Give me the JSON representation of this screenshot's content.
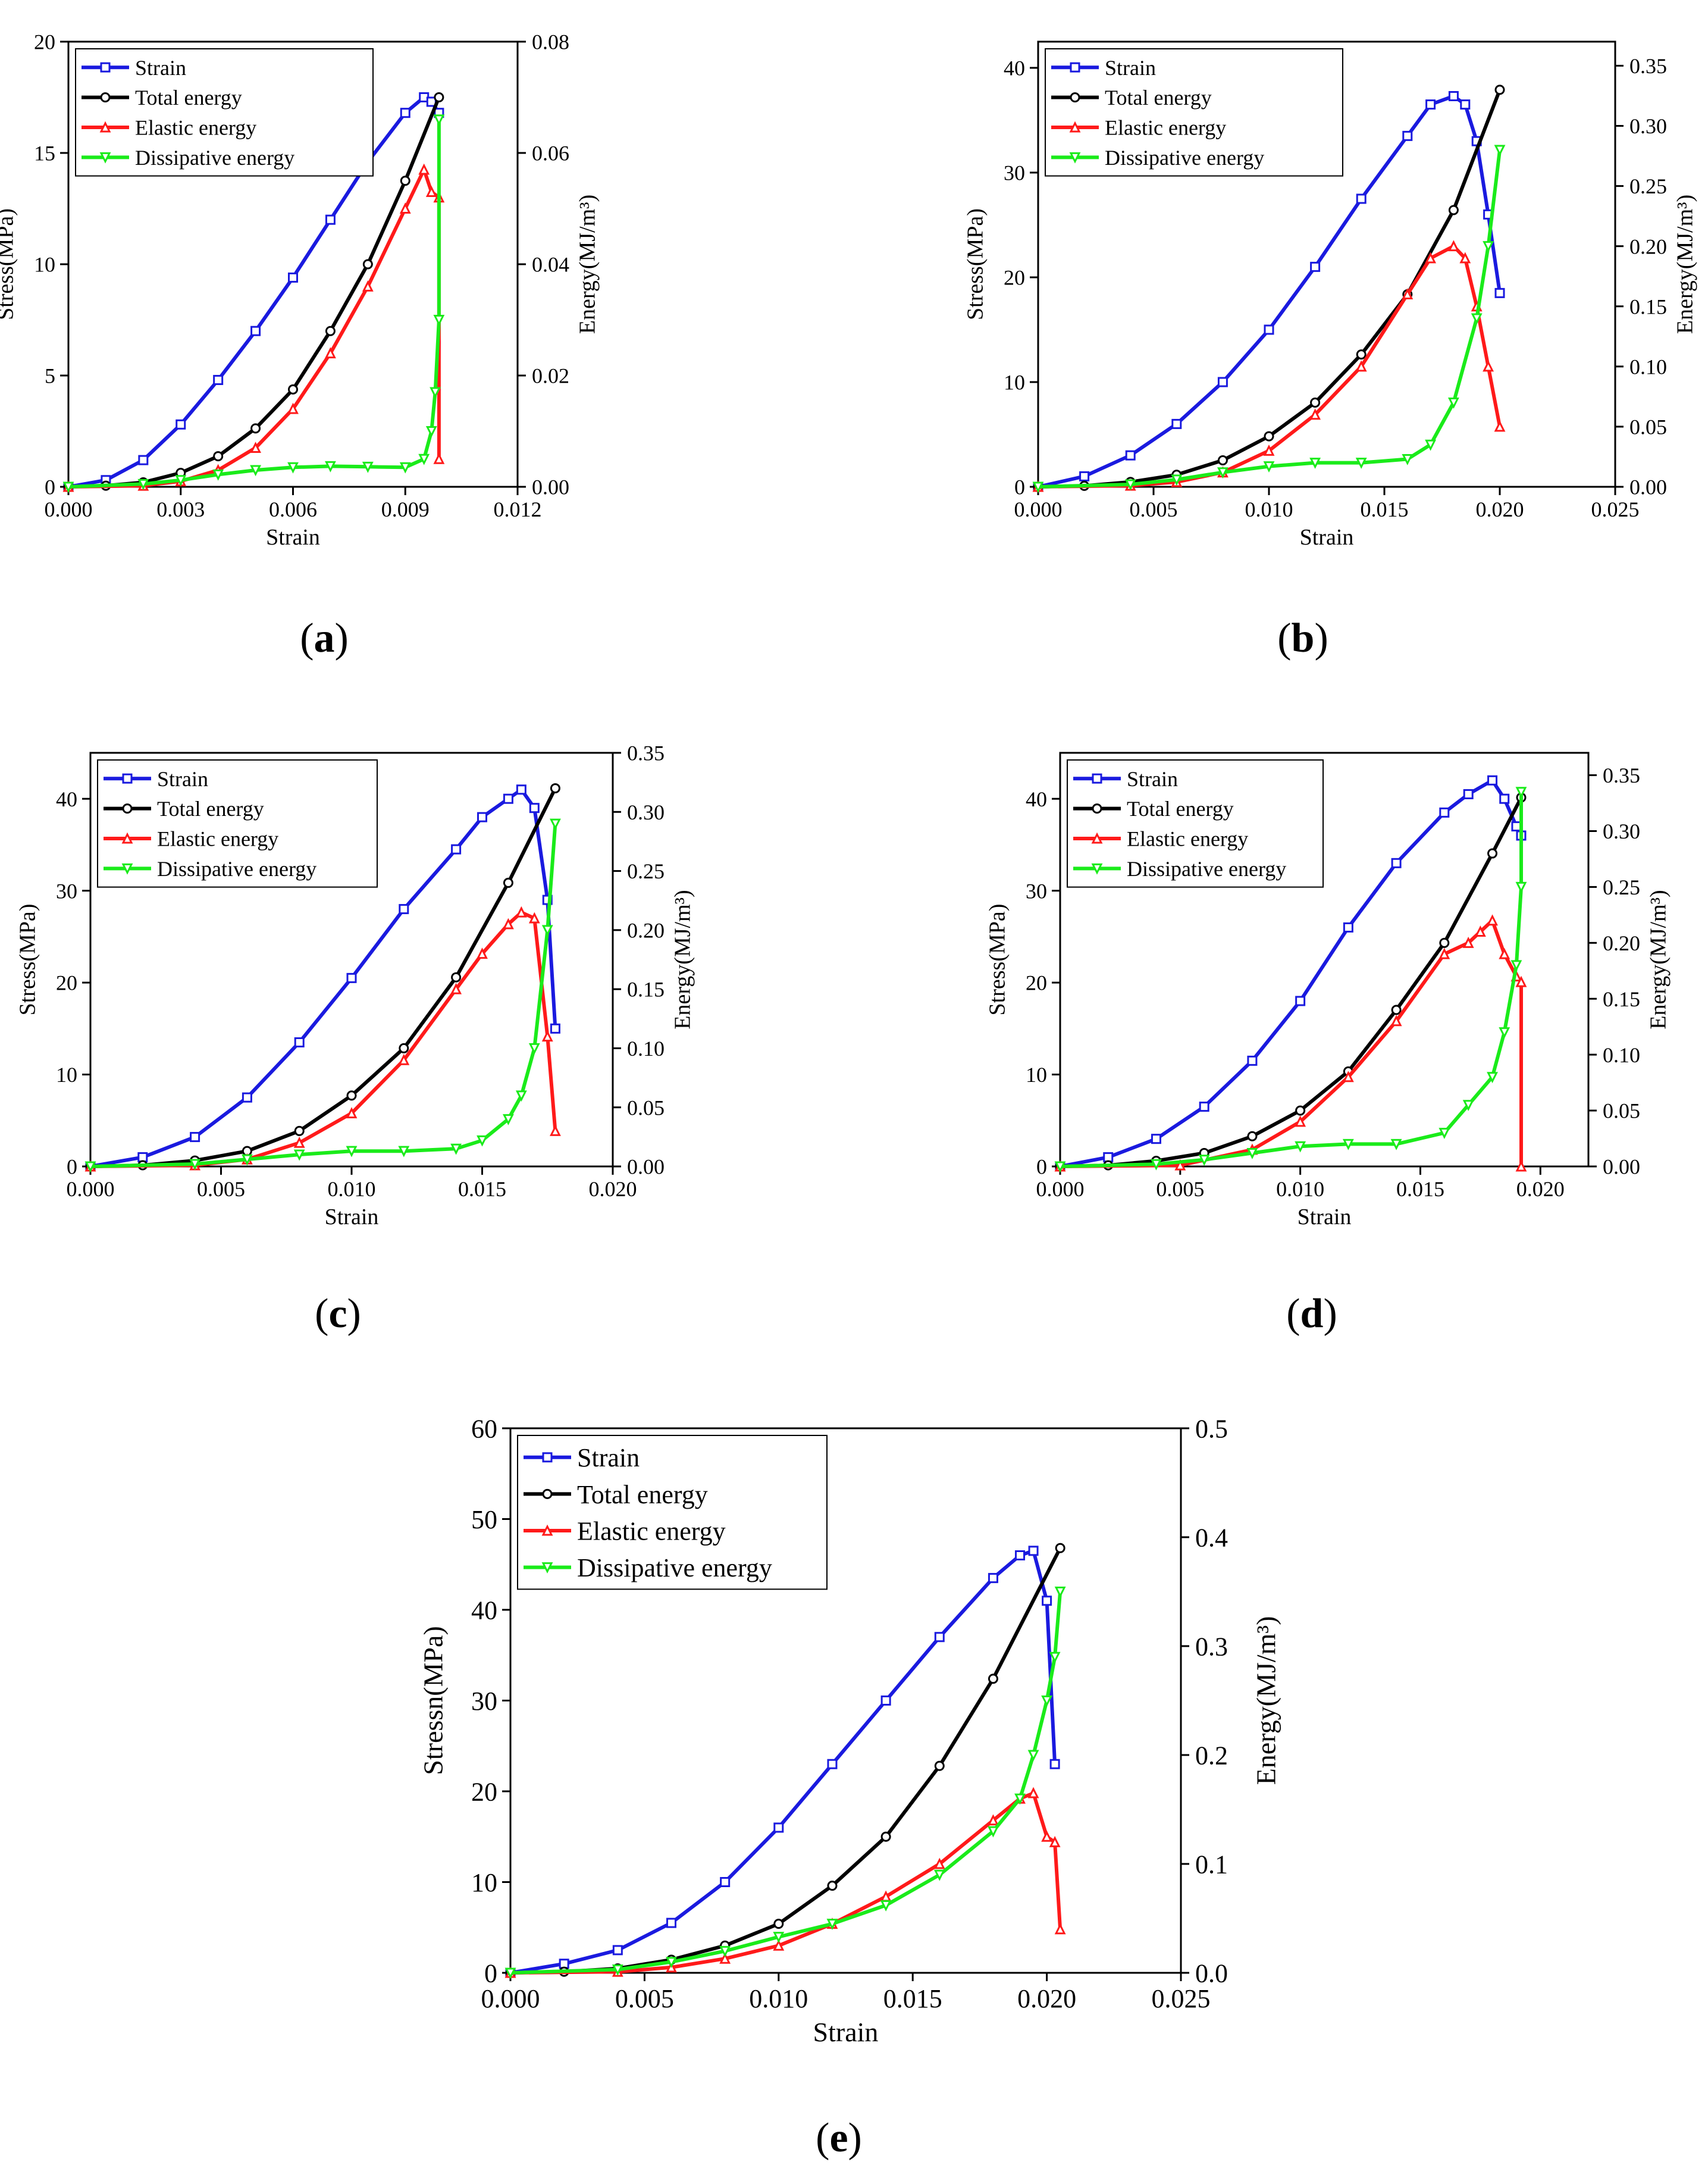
{
  "chart_data": [
    {
      "panel": "a",
      "type": "line",
      "caption_open": "(",
      "caption_letter": "a",
      "caption_close": ")",
      "xlabel": "Strain",
      "ylabel": "Stress(MPa)",
      "y2label": "Energy(MJ/m³)",
      "xlim": [
        0,
        0.012
      ],
      "ylim": [
        0,
        20
      ],
      "y2lim": [
        0,
        0.08
      ],
      "xticks": [
        "0.000",
        "0.003",
        "0.006",
        "0.009",
        "0.012"
      ],
      "yticks": [
        "0",
        "5",
        "10",
        "15",
        "20"
      ],
      "y2ticks": [
        "0.00",
        "0.02",
        "0.04",
        "0.06",
        "0.08"
      ],
      "legend": [
        "Strain",
        "Total energy",
        "Elastic energy",
        "Dissipative energy"
      ],
      "series": [
        {
          "name": "Strain",
          "axis": "left",
          "color": "#1a1adf",
          "marker": "square",
          "x": [
            0,
            0.001,
            0.002,
            0.003,
            0.004,
            0.005,
            0.006,
            0.007,
            0.008,
            0.009,
            0.0095,
            0.0097,
            0.0099
          ],
          "y": [
            0,
            0.3,
            1.2,
            2.8,
            4.8,
            7.0,
            9.4,
            12.0,
            14.6,
            16.8,
            17.5,
            17.3,
            16.8
          ]
        },
        {
          "name": "Total energy",
          "axis": "right",
          "color": "#000000",
          "marker": "circle",
          "x": [
            0,
            0.001,
            0.002,
            0.003,
            0.004,
            0.005,
            0.006,
            0.007,
            0.008,
            0.009,
            0.0099
          ],
          "y": [
            0,
            0.0002,
            0.0008,
            0.0025,
            0.0055,
            0.0105,
            0.0175,
            0.028,
            0.04,
            0.055,
            0.07
          ]
        },
        {
          "name": "Elastic energy",
          "axis": "right",
          "color": "#ff1a1a",
          "marker": "triangle-up",
          "x": [
            0,
            0.002,
            0.003,
            0.004,
            0.005,
            0.006,
            0.007,
            0.008,
            0.009,
            0.0095,
            0.0097,
            0.0099,
            0.0099
          ],
          "y": [
            0,
            0.0002,
            0.001,
            0.003,
            0.007,
            0.014,
            0.024,
            0.036,
            0.05,
            0.057,
            0.053,
            0.052,
            0.005
          ]
        },
        {
          "name": "Dissipative energy",
          "axis": "right",
          "color": "#1aeb1a",
          "marker": "triangle-down",
          "x": [
            0,
            0.002,
            0.003,
            0.004,
            0.005,
            0.006,
            0.007,
            0.008,
            0.009,
            0.0095,
            0.0097,
            0.0098,
            0.0099,
            0.0099
          ],
          "y": [
            0,
            0.0005,
            0.0012,
            0.0022,
            0.003,
            0.0035,
            0.0037,
            0.0036,
            0.0035,
            0.005,
            0.01,
            0.017,
            0.03,
            0.066
          ]
        }
      ]
    },
    {
      "panel": "b",
      "type": "line",
      "caption_open": "(",
      "caption_letter": "b",
      "caption_close": ")",
      "xlabel": "Strain",
      "ylabel": "Stress(MPa)",
      "y2label": "Energy(MJ/m³)",
      "xlim": [
        0,
        0.025
      ],
      "ylim": [
        0,
        42.5
      ],
      "y2lim": [
        0,
        0.37
      ],
      "xticks": [
        "0.000",
        "0.005",
        "0.010",
        "0.015",
        "0.020",
        "0.025"
      ],
      "yticks": [
        "0",
        "10",
        "20",
        "30",
        "40"
      ],
      "y2ticks": [
        "0.00",
        "0.05",
        "0.10",
        "0.15",
        "0.20",
        "0.25",
        "0.30",
        "0.35"
      ],
      "legend": [
        "Strain",
        "Total energy",
        "Elastic energy",
        "Dissipative energy"
      ],
      "series": [
        {
          "name": "Strain",
          "axis": "left",
          "color": "#1a1adf",
          "marker": "square",
          "x": [
            0,
            0.002,
            0.004,
            0.006,
            0.008,
            0.01,
            0.012,
            0.014,
            0.016,
            0.017,
            0.018,
            0.0185,
            0.019,
            0.0195,
            0.02
          ],
          "y": [
            0,
            1.0,
            3.0,
            6.0,
            10.0,
            15.0,
            21.0,
            27.5,
            33.5,
            36.5,
            37.3,
            36.5,
            33.0,
            26.0,
            18.5
          ]
        },
        {
          "name": "Total energy",
          "axis": "right",
          "color": "#000000",
          "marker": "circle",
          "x": [
            0,
            0.002,
            0.004,
            0.006,
            0.008,
            0.01,
            0.012,
            0.014,
            0.016,
            0.018,
            0.02
          ],
          "y": [
            0,
            0.0008,
            0.004,
            0.01,
            0.022,
            0.042,
            0.07,
            0.11,
            0.16,
            0.23,
            0.33
          ]
        },
        {
          "name": "Elastic energy",
          "axis": "right",
          "color": "#ff1a1a",
          "marker": "triangle-up",
          "x": [
            0,
            0.004,
            0.006,
            0.008,
            0.01,
            0.012,
            0.014,
            0.016,
            0.017,
            0.018,
            0.0185,
            0.019,
            0.0195,
            0.02
          ],
          "y": [
            0,
            0.001,
            0.004,
            0.012,
            0.03,
            0.06,
            0.1,
            0.16,
            0.19,
            0.2,
            0.19,
            0.15,
            0.1,
            0.05
          ]
        },
        {
          "name": "Dissipative energy",
          "axis": "right",
          "color": "#1aeb1a",
          "marker": "triangle-down",
          "x": [
            0,
            0.004,
            0.006,
            0.008,
            0.01,
            0.012,
            0.014,
            0.016,
            0.017,
            0.018,
            0.019,
            0.0195,
            0.02
          ],
          "y": [
            0,
            0.002,
            0.006,
            0.012,
            0.017,
            0.02,
            0.02,
            0.023,
            0.035,
            0.07,
            0.14,
            0.2,
            0.28
          ]
        }
      ]
    },
    {
      "panel": "c",
      "type": "line",
      "caption_open": "(",
      "caption_letter": "c",
      "caption_close": ")",
      "xlabel": "Strain",
      "ylabel": "Stress(MPa)",
      "y2label": "Energy(MJ/m³)",
      "xlim": [
        0,
        0.02
      ],
      "ylim": [
        0,
        45
      ],
      "y2lim": [
        0,
        0.35
      ],
      "xticks": [
        "0.000",
        "0.005",
        "0.010",
        "0.015",
        "0.020"
      ],
      "yticks": [
        "0",
        "10",
        "20",
        "30",
        "40"
      ],
      "y2ticks": [
        "0.00",
        "0.05",
        "0.10",
        "0.15",
        "0.20",
        "0.25",
        "0.30",
        "0.35"
      ],
      "legend": [
        "Strain",
        "Total energy",
        "Elastic energy",
        "Dissipative energy"
      ],
      "series": [
        {
          "name": "Strain",
          "axis": "left",
          "color": "#1a1adf",
          "marker": "square",
          "x": [
            0,
            0.002,
            0.004,
            0.006,
            0.008,
            0.01,
            0.012,
            0.014,
            0.015,
            0.016,
            0.0165,
            0.017,
            0.0175,
            0.0178
          ],
          "y": [
            0,
            1.0,
            3.2,
            7.5,
            13.5,
            20.5,
            28.0,
            34.5,
            38.0,
            40.0,
            41.0,
            39.0,
            29.0,
            15.0
          ]
        },
        {
          "name": "Total energy",
          "axis": "right",
          "color": "#000000",
          "marker": "circle",
          "x": [
            0,
            0.002,
            0.004,
            0.006,
            0.008,
            0.01,
            0.012,
            0.014,
            0.016,
            0.0178
          ],
          "y": [
            0,
            0.001,
            0.005,
            0.013,
            0.03,
            0.06,
            0.1,
            0.16,
            0.24,
            0.32
          ]
        },
        {
          "name": "Elastic energy",
          "axis": "right",
          "color": "#ff1a1a",
          "marker": "triangle-up",
          "x": [
            0,
            0.004,
            0.006,
            0.008,
            0.01,
            0.012,
            0.014,
            0.015,
            0.016,
            0.0165,
            0.017,
            0.0175,
            0.0178
          ],
          "y": [
            0,
            0.001,
            0.006,
            0.02,
            0.045,
            0.09,
            0.15,
            0.18,
            0.205,
            0.215,
            0.21,
            0.11,
            0.03
          ]
        },
        {
          "name": "Dissipative energy",
          "axis": "right",
          "color": "#1aeb1a",
          "marker": "triangle-down",
          "x": [
            0,
            0.004,
            0.006,
            0.008,
            0.01,
            0.012,
            0.014,
            0.015,
            0.016,
            0.0165,
            0.017,
            0.0175,
            0.0178
          ],
          "y": [
            0,
            0.002,
            0.006,
            0.01,
            0.013,
            0.013,
            0.015,
            0.022,
            0.04,
            0.06,
            0.1,
            0.2,
            0.29
          ]
        }
      ]
    },
    {
      "panel": "d",
      "type": "line",
      "caption_open": "(",
      "caption_letter": "d",
      "caption_close": ")",
      "xlabel": "Strain",
      "ylabel": "Stress(MPa)",
      "y2label": "Energy(MJ/m³)",
      "xlim": [
        0,
        0.022
      ],
      "ylim": [
        0,
        45
      ],
      "y2lim": [
        0,
        0.37
      ],
      "xticks": [
        "0.000",
        "0.005",
        "0.010",
        "0.015",
        "0.020"
      ],
      "yticks": [
        "0",
        "10",
        "20",
        "30",
        "40"
      ],
      "y2ticks": [
        "0.00",
        "0.05",
        "0.10",
        "0.15",
        "0.20",
        "0.25",
        "0.30",
        "0.35"
      ],
      "legend": [
        "Strain",
        "Total energy",
        "Elastic energy",
        "Dissipative energy"
      ],
      "series": [
        {
          "name": "Strain",
          "axis": "left",
          "color": "#1a1adf",
          "marker": "square",
          "x": [
            0,
            0.002,
            0.004,
            0.006,
            0.008,
            0.01,
            0.012,
            0.014,
            0.016,
            0.017,
            0.018,
            0.0185,
            0.019,
            0.0192
          ],
          "y": [
            0,
            1.0,
            3.0,
            6.5,
            11.5,
            18.0,
            26.0,
            33.0,
            38.5,
            40.5,
            42.0,
            40.0,
            37.0,
            36.0
          ]
        },
        {
          "name": "Total energy",
          "axis": "right",
          "color": "#000000",
          "marker": "circle",
          "x": [
            0,
            0.002,
            0.004,
            0.006,
            0.008,
            0.01,
            0.012,
            0.014,
            0.016,
            0.018,
            0.0192
          ],
          "y": [
            0,
            0.001,
            0.005,
            0.012,
            0.027,
            0.05,
            0.085,
            0.14,
            0.2,
            0.28,
            0.33
          ]
        },
        {
          "name": "Elastic energy",
          "axis": "right",
          "color": "#ff1a1a",
          "marker": "triangle-up",
          "x": [
            0,
            0.005,
            0.008,
            0.01,
            0.012,
            0.014,
            0.016,
            0.017,
            0.0175,
            0.018,
            0.0185,
            0.019,
            0.0192,
            0.0192
          ],
          "y": [
            0,
            0.001,
            0.015,
            0.04,
            0.08,
            0.13,
            0.19,
            0.2,
            0.21,
            0.22,
            0.19,
            0.17,
            0.165,
            0.0
          ]
        },
        {
          "name": "Dissipative energy",
          "axis": "right",
          "color": "#1aeb1a",
          "marker": "triangle-down",
          "x": [
            0,
            0.004,
            0.006,
            0.008,
            0.01,
            0.012,
            0.014,
            0.016,
            0.017,
            0.018,
            0.0185,
            0.019,
            0.0192,
            0.0192
          ],
          "y": [
            0,
            0.002,
            0.006,
            0.012,
            0.018,
            0.02,
            0.02,
            0.03,
            0.055,
            0.08,
            0.12,
            0.18,
            0.25,
            0.335
          ]
        }
      ]
    },
    {
      "panel": "e",
      "type": "line",
      "caption_open": "(",
      "caption_letter": "e",
      "caption_close": ")",
      "xlabel": "Strain",
      "ylabel": "Stressn(MPa)",
      "y2label": "Energy(MJ/m³)",
      "xlim": [
        0,
        0.025
      ],
      "ylim": [
        0,
        60
      ],
      "y2lim": [
        0,
        0.5
      ],
      "xticks": [
        "0.000",
        "0.005",
        "0.010",
        "0.015",
        "0.020",
        "0.025"
      ],
      "yticks": [
        "0",
        "10",
        "20",
        "30",
        "40",
        "50",
        "60"
      ],
      "y2ticks": [
        "0.0",
        "0.1",
        "0.2",
        "0.3",
        "0.4",
        "0.5"
      ],
      "legend": [
        "Strain",
        "Total energy",
        "Elastic energy",
        "Dissipative energy"
      ],
      "series": [
        {
          "name": "Strain",
          "axis": "left",
          "color": "#1a1adf",
          "marker": "square",
          "x": [
            0,
            0.002,
            0.004,
            0.006,
            0.008,
            0.01,
            0.012,
            0.014,
            0.016,
            0.018,
            0.019,
            0.0195,
            0.02,
            0.0203
          ],
          "y": [
            0,
            1.0,
            2.5,
            5.5,
            10.0,
            16.0,
            23.0,
            30.0,
            37.0,
            43.5,
            46.0,
            46.5,
            41.0,
            23.0
          ]
        },
        {
          "name": "Total energy",
          "axis": "right",
          "color": "#000000",
          "marker": "circle",
          "x": [
            0,
            0.002,
            0.004,
            0.006,
            0.008,
            0.01,
            0.012,
            0.014,
            0.016,
            0.018,
            0.0205
          ],
          "y": [
            0,
            0.001,
            0.004,
            0.012,
            0.025,
            0.045,
            0.08,
            0.125,
            0.19,
            0.27,
            0.39
          ]
        },
        {
          "name": "Elastic energy",
          "axis": "right",
          "color": "#ff1a1a",
          "marker": "triangle-up",
          "x": [
            0,
            0.004,
            0.006,
            0.008,
            0.01,
            0.012,
            0.014,
            0.016,
            0.018,
            0.019,
            0.0195,
            0.02,
            0.0203,
            0.0205
          ],
          "y": [
            0,
            0.001,
            0.005,
            0.013,
            0.025,
            0.045,
            0.07,
            0.1,
            0.14,
            0.16,
            0.165,
            0.125,
            0.12,
            0.04
          ]
        },
        {
          "name": "Dissipative energy",
          "axis": "right",
          "color": "#1aeb1a",
          "marker": "triangle-down",
          "x": [
            0,
            0.004,
            0.006,
            0.008,
            0.01,
            0.012,
            0.014,
            0.016,
            0.018,
            0.019,
            0.0195,
            0.02,
            0.0203,
            0.0205
          ],
          "y": [
            0,
            0.003,
            0.01,
            0.02,
            0.033,
            0.045,
            0.062,
            0.09,
            0.13,
            0.16,
            0.2,
            0.25,
            0.29,
            0.35
          ]
        }
      ]
    }
  ]
}
